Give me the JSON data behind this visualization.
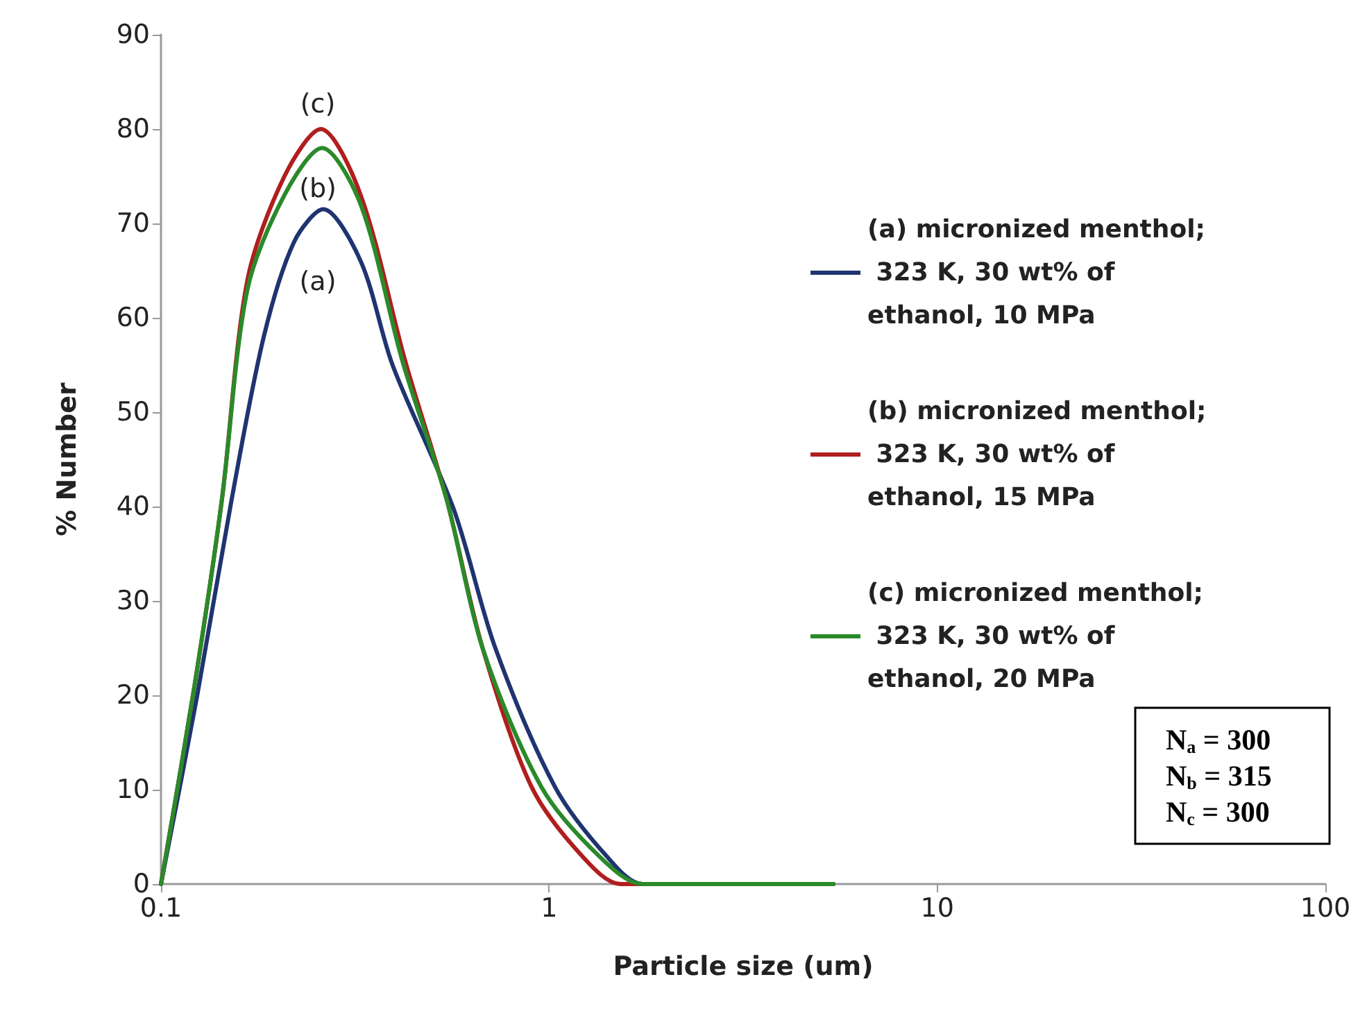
{
  "chart_data": {
    "type": "line",
    "xlabel": "Particle size (um)",
    "ylabel": "% Number",
    "log": "x",
    "xlim": [
      0.1,
      100
    ],
    "xticks": [
      0.1,
      1,
      10,
      100
    ],
    "ylim": [
      0,
      90
    ],
    "yticks": [
      0,
      10,
      20,
      30,
      40,
      50,
      60,
      70,
      80,
      90
    ],
    "grid": false,
    "legend": "right",
    "marker": "none",
    "line_style": "solid",
    "series": [
      {
        "name": "(a) micronized menthol; 323 K, 30 wt% of ethanol, 10 MPa",
        "color": "#1f3470",
        "x": [
          0.1,
          0.124,
          0.152,
          0.184,
          0.22,
          0.262,
          0.327,
          0.395,
          0.568,
          0.727,
          1.035,
          1.41,
          1.74,
          5.4
        ],
        "values": [
          0,
          20,
          40.7,
          58,
          68,
          71.5,
          66,
          55,
          39.7,
          25,
          10.3,
          2.9,
          0,
          0
        ]
      },
      {
        "name": "(b) micronized menthol; 323 K, 30 wt% of ethanol, 15 MPa",
        "color": "#b01e1e",
        "x": [
          0.1,
          0.122,
          0.1435,
          0.167,
          0.208,
          0.258,
          0.327,
          0.426,
          0.545,
          0.674,
          0.901,
          1.22,
          1.53,
          5.4
        ],
        "values": [
          0,
          21,
          40.7,
          64,
          75,
          80,
          73,
          55.4,
          40.7,
          25,
          10.3,
          2.9,
          0,
          0
        ]
      },
      {
        "name": "(c) micronized menthol; 323 K, 30 wt% of ethanol, 20 MPa",
        "color": "#2a8a2a",
        "x": [
          0.1,
          0.122,
          0.1435,
          0.167,
          0.208,
          0.26,
          0.327,
          0.419,
          0.545,
          0.674,
          0.955,
          1.35,
          1.74,
          5.4
        ],
        "values": [
          0,
          21,
          40.7,
          63,
          73,
          78,
          72,
          55.4,
          40.7,
          25,
          10.3,
          2.9,
          0,
          0
        ]
      }
    ],
    "annotations": [
      "(c)",
      "(b)",
      "(a)",
      "N$_{a}$ = 300",
      "N$_{b}$ = 315",
      "N$_{c}$ = 300"
    ]
  }
}
